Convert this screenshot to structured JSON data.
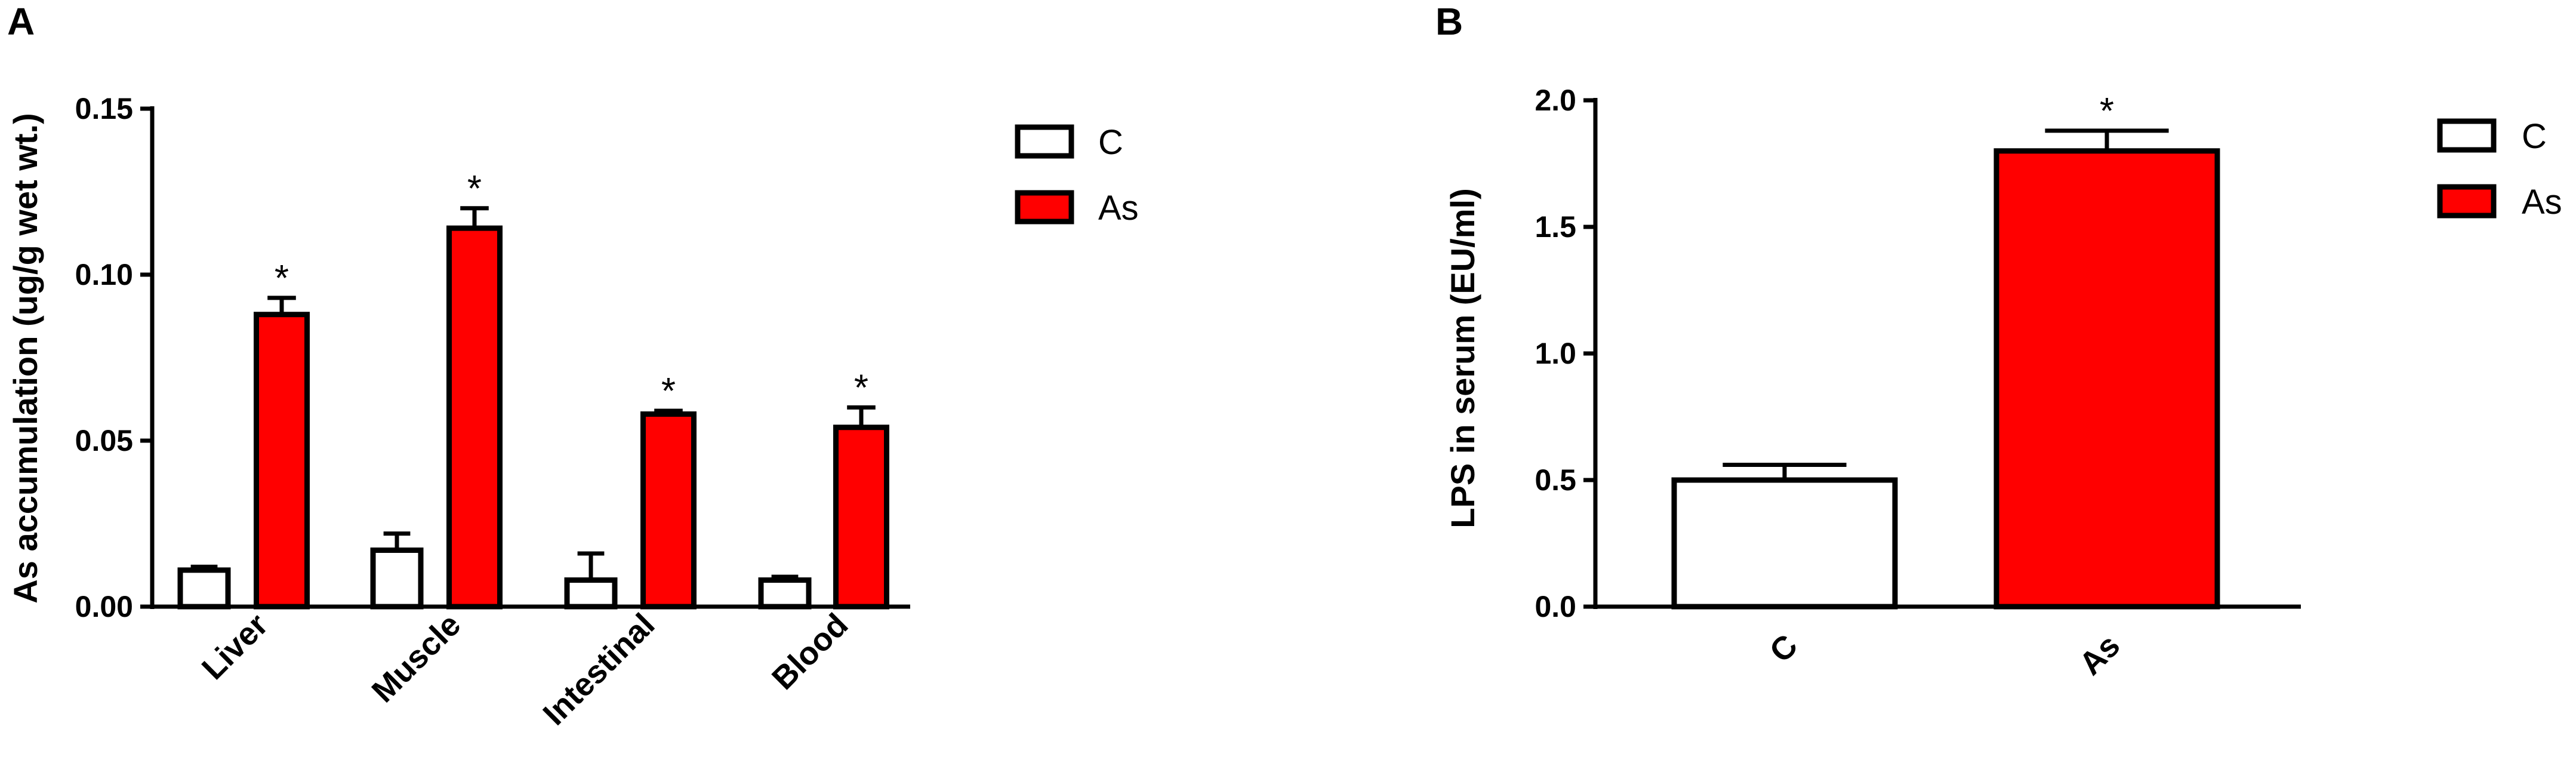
{
  "panels": {
    "a": {
      "label": "A",
      "legend": [
        {
          "name": "C",
          "color": "#ffffff"
        },
        {
          "name": "As",
          "color": "#ff0000"
        }
      ]
    },
    "b": {
      "label": "B",
      "legend": [
        {
          "name": "C",
          "color": "#ffffff"
        },
        {
          "name": "As",
          "color": "#ff0000"
        }
      ]
    }
  },
  "chart_data": [
    {
      "type": "bar",
      "title": "",
      "xlabel": "",
      "ylabel": "As accumulation (ug/g wet wt.)",
      "ylim": [
        0,
        0.15
      ],
      "yticks": [
        0,
        0.05,
        0.1,
        0.15
      ],
      "yticklabels": [
        "0.00",
        "0.05",
        "0.10",
        "0.15"
      ],
      "categories": [
        "Liver",
        "Muscle",
        "Intestinal",
        "Blood"
      ],
      "series": [
        {
          "name": "C",
          "color": "#ffffff",
          "values": [
            0.011,
            0.017,
            0.008,
            0.008
          ],
          "errors": [
            0.001,
            0.005,
            0.008,
            0.001
          ],
          "significance": [
            "",
            "",
            "",
            ""
          ]
        },
        {
          "name": "As",
          "color": "#ff0000",
          "values": [
            0.088,
            0.114,
            0.058,
            0.054
          ],
          "errors": [
            0.005,
            0.006,
            0.001,
            0.006
          ],
          "significance": [
            "*",
            "*",
            "*",
            "*"
          ]
        }
      ],
      "legend_position": "top-right",
      "grid": false
    },
    {
      "type": "bar",
      "title": "",
      "xlabel": "",
      "ylabel": "LPS in serum (EU/ml)",
      "ylim": [
        0,
        2.0
      ],
      "yticks": [
        0,
        0.5,
        1.0,
        1.5,
        2.0
      ],
      "yticklabels": [
        "0.0",
        "0.5",
        "1.0",
        "1.5",
        "2.0"
      ],
      "categories": [
        "C",
        "As"
      ],
      "values": [
        0.5,
        1.8
      ],
      "errors": [
        0.06,
        0.08
      ],
      "colors": [
        "#ffffff",
        "#ff0000"
      ],
      "significance": [
        "",
        "*"
      ],
      "legend_position": "top-right",
      "grid": false
    }
  ]
}
